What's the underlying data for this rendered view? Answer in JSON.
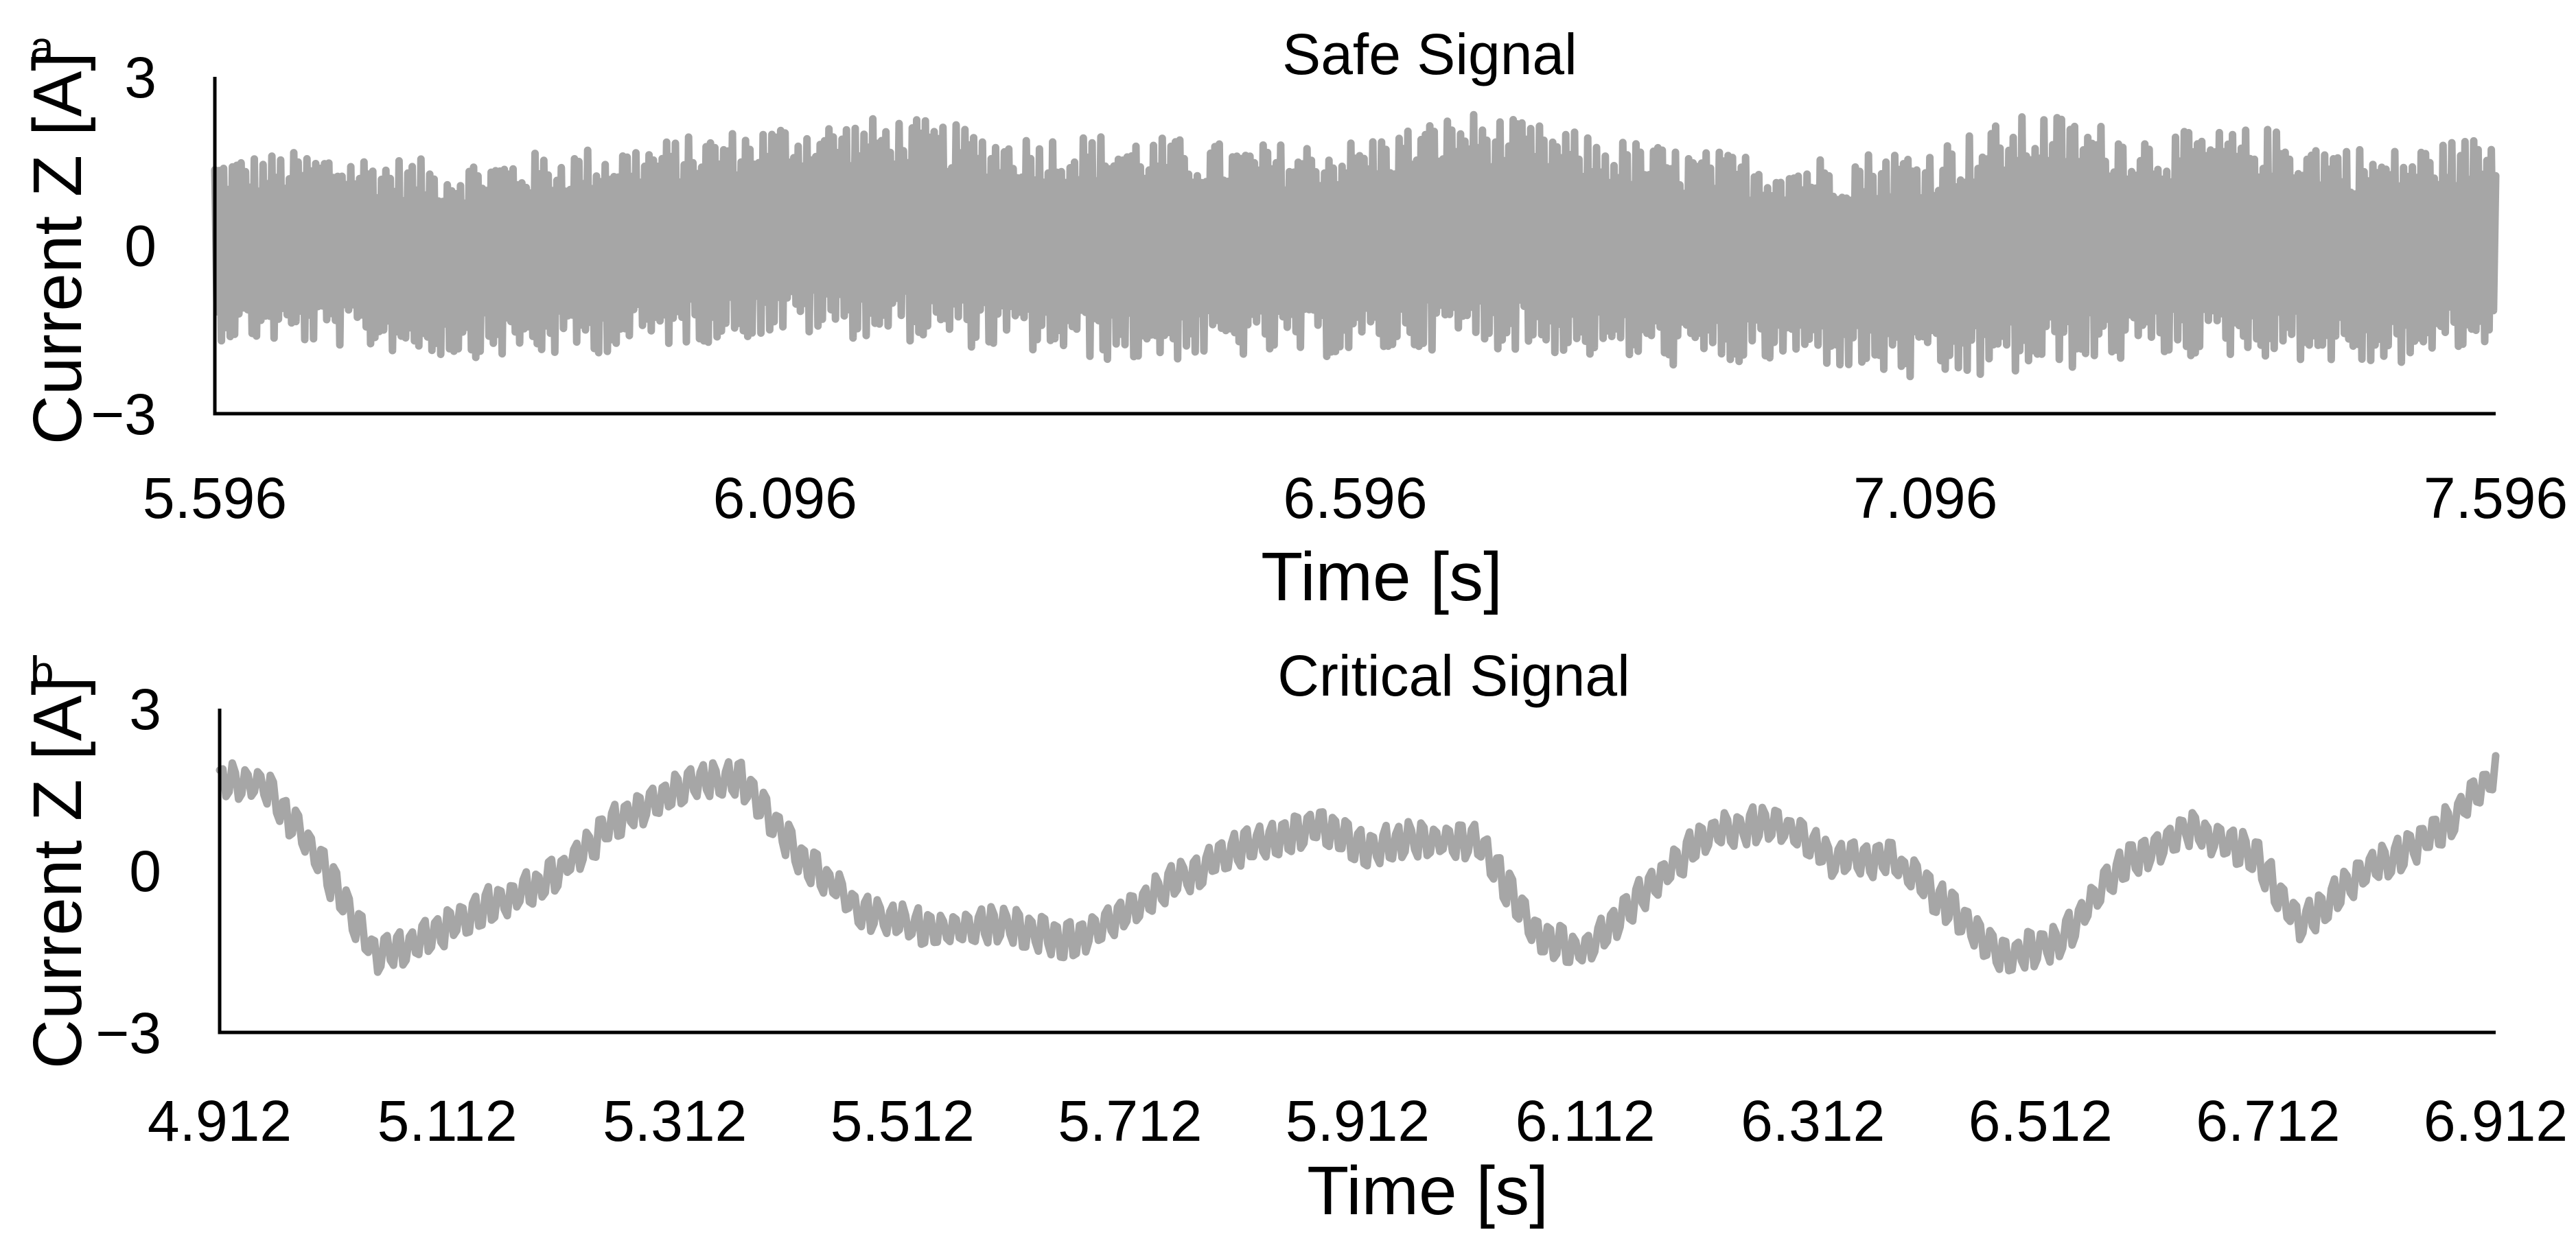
{
  "colors": {
    "series": "#a6a6a6",
    "axis": "#000000",
    "background": "#ffffff"
  },
  "chart_data": [
    {
      "type": "line",
      "panel_label": "a",
      "title": "Safe Signal",
      "xlabel": "Time [s]",
      "ylabel": "Current Z [A]",
      "xlim": [
        5.596,
        7.596
      ],
      "ylim": [
        -3,
        3
      ],
      "xticks": [
        "5.596",
        "6.096",
        "6.596",
        "7.096",
        "7.596"
      ],
      "xtick_values": [
        5.596,
        6.096,
        6.596,
        7.096,
        7.596
      ],
      "yticks": [
        "3",
        "0",
        "−3"
      ],
      "ytick_values": [
        3,
        0,
        -3
      ],
      "grid": false,
      "legend": "none",
      "series": [
        {
          "name": "Current Z",
          "color": "#a6a6a6",
          "x": [
            5.596,
            5.696,
            5.796,
            5.896,
            5.996,
            6.096,
            6.196,
            6.296,
            6.396,
            6.496,
            6.596,
            6.696,
            6.796,
            6.896,
            6.996,
            7.096,
            7.196,
            7.296,
            7.396,
            7.496,
            7.596
          ],
          "envelope_upper": [
            1.6,
            1.7,
            1.5,
            1.7,
            1.9,
            2.2,
            2.3,
            2.0,
            2.0,
            1.8,
            1.9,
            2.4,
            2.0,
            1.7,
            1.6,
            1.8,
            2.4,
            2.0,
            2.1,
            1.7,
            2.0
          ],
          "envelope_lower": [
            -1.7,
            -1.8,
            -2.0,
            -2.0,
            -1.8,
            -1.6,
            -1.7,
            -1.9,
            -2.1,
            -2.0,
            -2.0,
            -1.8,
            -2.0,
            -2.2,
            -2.1,
            -2.5,
            -2.3,
            -2.0,
            -2.0,
            -2.2,
            -1.8
          ],
          "oscillation_hz": 260
        }
      ]
    },
    {
      "type": "line",
      "panel_label": "b",
      "title": "Critical Signal",
      "xlabel": "Time [s]",
      "ylabel": "Current Z [A]",
      "xlim": [
        4.912,
        6.912
      ],
      "ylim": [
        -3,
        3
      ],
      "xticks": [
        "4.912",
        "5.112",
        "5.312",
        "5.512",
        "5.712",
        "5.912",
        "6.112",
        "6.312",
        "6.512",
        "6.712",
        "6.912"
      ],
      "xtick_values": [
        4.912,
        5.112,
        5.312,
        5.512,
        5.712,
        5.912,
        6.112,
        6.312,
        6.512,
        6.712,
        6.912
      ],
      "yticks": [
        "3",
        "0",
        "−3"
      ],
      "ytick_values": [
        3,
        0,
        -3
      ],
      "grid": false,
      "legend": "none",
      "series": [
        {
          "name": "Current Z",
          "color": "#a6a6a6",
          "trend_x": [
            4.912,
            4.95,
            4.99,
            5.05,
            5.09,
            5.14,
            5.2,
            5.26,
            5.32,
            5.37,
            5.42,
            5.48,
            5.54,
            5.6,
            5.66,
            5.7,
            5.76,
            5.82,
            5.88,
            5.92,
            5.96,
            6.02,
            6.07,
            6.11,
            6.16,
            6.22,
            6.28,
            6.33,
            6.38,
            6.44,
            6.48,
            6.53,
            6.58,
            6.64,
            6.7,
            6.74,
            6.8,
            6.86,
            6.912
          ],
          "trend_y": [
            1.7,
            1.6,
            0.5,
            -1.6,
            -1.3,
            -0.7,
            -0.2,
            0.9,
            1.6,
            1.7,
            0.3,
            -0.8,
            -1.1,
            -1.0,
            -1.3,
            -0.9,
            -0.1,
            0.5,
            0.8,
            0.4,
            0.6,
            0.5,
            -1.2,
            -1.5,
            -0.5,
            0.7,
            0.9,
            0.2,
            0.2,
            -0.8,
            -1.6,
            -1.3,
            0.0,
            0.8,
            0.3,
            -1.0,
            0.0,
            0.7,
            1.8
          ],
          "ripple_amplitude": 0.35,
          "ripple_hz": 90
        }
      ]
    }
  ]
}
